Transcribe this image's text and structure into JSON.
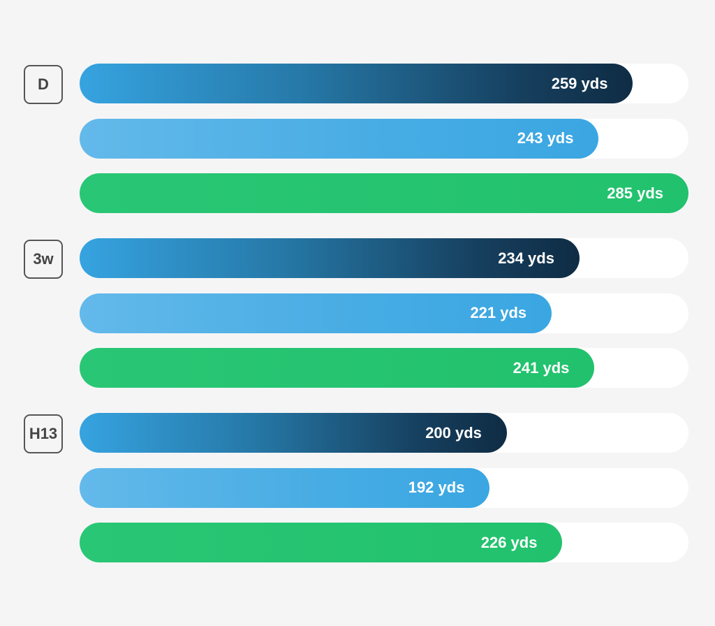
{
  "chart_data": {
    "type": "bar",
    "orientation": "horizontal",
    "categories": [
      "D",
      "3w",
      "H13"
    ],
    "unit": "yds",
    "xlim": [
      0,
      285
    ],
    "series": [
      {
        "values": [
          259,
          234,
          200
        ],
        "labels": [
          "259 yds",
          "234 yds",
          "200 yds"
        ],
        "color": "#163f5e"
      },
      {
        "values": [
          243,
          221,
          192
        ],
        "labels": [
          "243 yds",
          "221 yds",
          "192 yds"
        ],
        "color": "#49ade4"
      },
      {
        "values": [
          285,
          241,
          226
        ],
        "labels": [
          "285 yds",
          "241 yds",
          "226 yds"
        ],
        "color": "#22c16d"
      }
    ],
    "grid": false
  }
}
